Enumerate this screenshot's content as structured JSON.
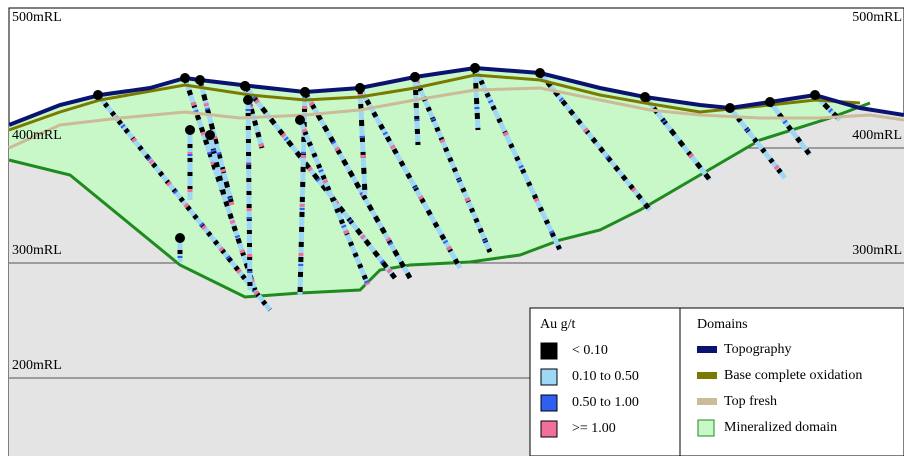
{
  "levels": {
    "left": [
      "500mRL",
      "400mRL",
      "300mRL",
      "200mRL"
    ],
    "right": [
      "500mRL",
      "400mRL",
      "300mRL"
    ]
  },
  "legend_grade": {
    "title": "Au g/t",
    "items": [
      {
        "label": "< 0.10",
        "color": "#000000"
      },
      {
        "label": "0.10 to 0.50",
        "color": "#9fd8f5"
      },
      {
        "label": "0.50 to 1.00",
        "color": "#2f5ff0"
      },
      {
        "label": ">= 1.00",
        "color": "#f0709a"
      }
    ]
  },
  "legend_domains": {
    "title": "Domains",
    "items": [
      {
        "label": "Topography",
        "color": "#0a1470"
      },
      {
        "label": "Base complete oxidation",
        "color": "#7a7a00"
      },
      {
        "label": "Top fresh",
        "color": "#cbbb98"
      },
      {
        "label": "Mineralized domain",
        "color": "#c8f8c8"
      }
    ]
  }
}
